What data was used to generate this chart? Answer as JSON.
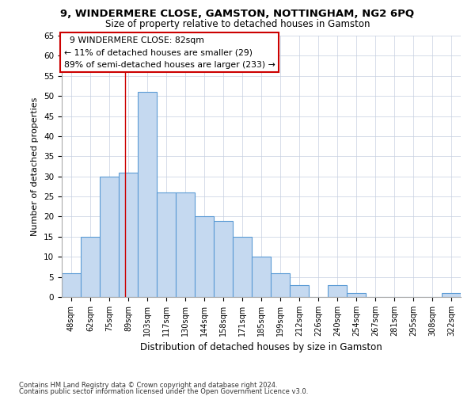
{
  "title1": "9, WINDERMERE CLOSE, GAMSTON, NOTTINGHAM, NG2 6PQ",
  "title2": "Size of property relative to detached houses in Gamston",
  "xlabel": "Distribution of detached houses by size in Gamston",
  "ylabel": "Number of detached properties",
  "categories": [
    "48sqm",
    "62sqm",
    "75sqm",
    "89sqm",
    "103sqm",
    "117sqm",
    "130sqm",
    "144sqm",
    "158sqm",
    "171sqm",
    "185sqm",
    "199sqm",
    "212sqm",
    "226sqm",
    "240sqm",
    "254sqm",
    "267sqm",
    "281sqm",
    "295sqm",
    "308sqm",
    "322sqm"
  ],
  "values": [
    6,
    15,
    30,
    31,
    51,
    26,
    26,
    20,
    19,
    15,
    10,
    6,
    3,
    0,
    3,
    1,
    0,
    0,
    0,
    0,
    1
  ],
  "bar_color": "#c5d9f0",
  "bar_edge_color": "#5b9bd5",
  "ylim": [
    0,
    65
  ],
  "yticks": [
    0,
    5,
    10,
    15,
    20,
    25,
    30,
    35,
    40,
    45,
    50,
    55,
    60,
    65
  ],
  "property_label": "9 WINDERMERE CLOSE: 82sqm",
  "pct_smaller": "11% of detached houses are smaller (29)",
  "pct_larger": "89% of semi-detached houses are larger (233)",
  "vline_x_index": 2.82,
  "footer1": "Contains HM Land Registry data © Crown copyright and database right 2024.",
  "footer2": "Contains public sector information licensed under the Open Government Licence v3.0."
}
